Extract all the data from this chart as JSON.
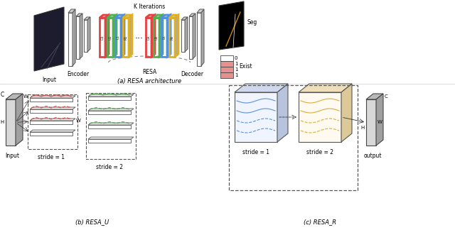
{
  "title_a": "(a) RESA architecture",
  "title_b": "(b) RESA_U",
  "title_c": "(c) RESA_R",
  "label_input": "Input",
  "label_encoder": "Encoder",
  "label_decoder": "Decoder",
  "label_resa": "RESA",
  "label_k_iter": "K Iterations",
  "label_seg": "Seg",
  "label_exist": "Exist",
  "label_stride1": "stride = 1",
  "label_stride2": "stride = 2",
  "label_output": "output",
  "label_W": "W",
  "label_H": "H",
  "label_C": "C",
  "exist_values": [
    "0",
    "1",
    "1",
    "1"
  ],
  "block_colors": {
    "D": "#e84040",
    "U": "#50b050",
    "L": "#5090e0",
    "R": "#e0b020",
    "encoder": "#d5d8dc",
    "decoder": "#d5d8dc",
    "default": "#ecf0f1"
  },
  "background": "#ffffff",
  "text_color": "#000000",
  "dashed_color": "#666666",
  "line_color_red": "#e84040",
  "line_color_green": "#40b040",
  "line_color_blue": "#4080d0",
  "line_color_yellow": "#d0a020"
}
